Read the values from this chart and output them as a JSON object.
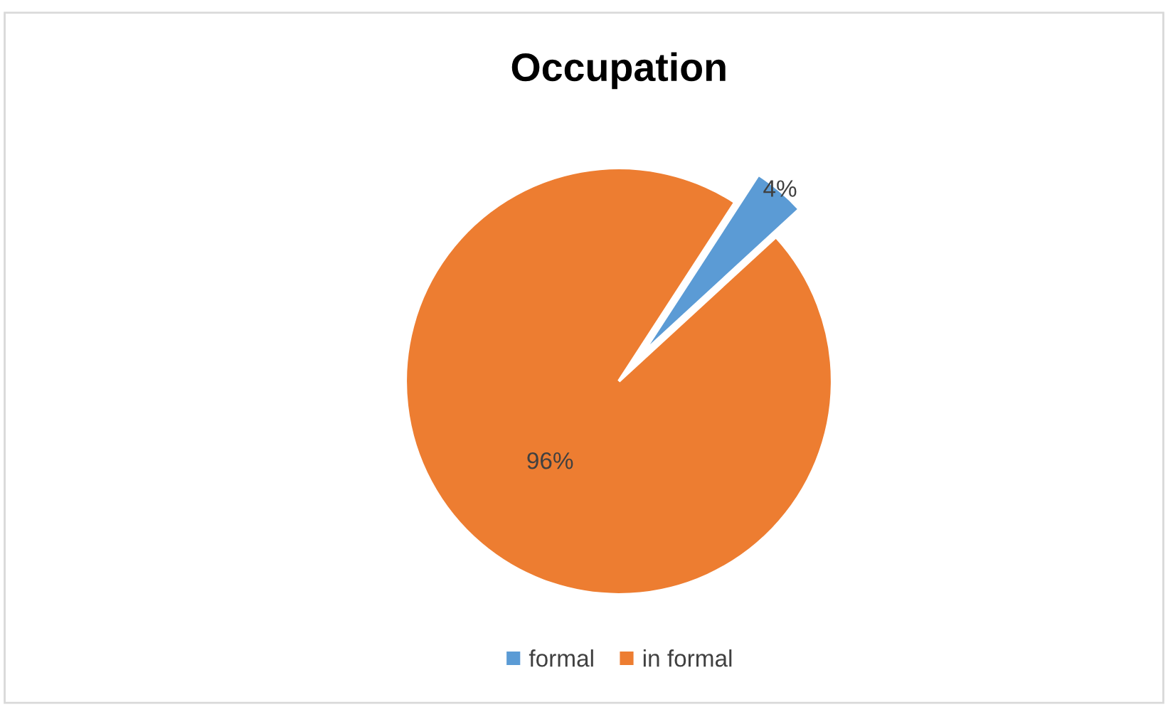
{
  "chart_data": {
    "type": "pie",
    "title": "Occupation",
    "categories": [
      "formal",
      "in formal"
    ],
    "values": [
      4,
      96
    ],
    "colors": [
      "#5b9bd5",
      "#ed7d31"
    ],
    "value_labels": [
      "4%",
      "96%"
    ],
    "legend": "bottom"
  }
}
